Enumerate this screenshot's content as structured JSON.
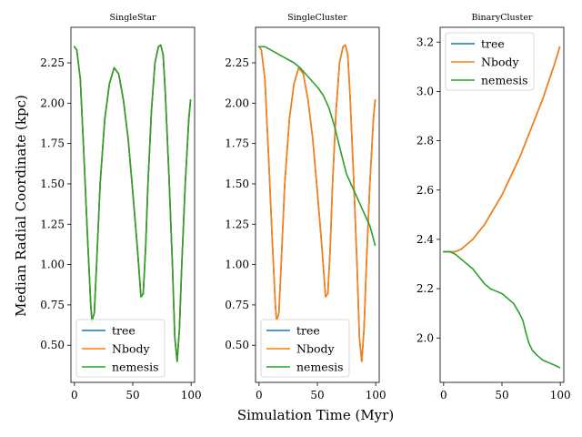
{
  "figure": {
    "xlabel": "Simulation Time (Myr)",
    "ylabel": "Median Radial Coordinate (kpc)"
  },
  "colors": {
    "tree": "#1f77b4",
    "Nbody": "#ff7f0e",
    "nemesis": "#2ca02c"
  },
  "chart_data": [
    {
      "type": "line",
      "title": "SingleStar",
      "xlim": [
        -3,
        103
      ],
      "ylim": [
        0.27,
        2.47
      ],
      "xticks": [
        0,
        50,
        100
      ],
      "yticks": [
        0.5,
        0.75,
        1.0,
        1.25,
        1.5,
        1.75,
        2.0,
        2.25
      ],
      "ytick_labels": [
        "0.50",
        "0.75",
        "1.00",
        "1.25",
        "1.50",
        "1.75",
        "2.00",
        "2.25"
      ],
      "legend": "lower-left",
      "series": [
        {
          "name": "tree",
          "x": [
            0,
            2,
            5,
            8,
            11,
            14,
            15,
            17,
            19,
            22,
            26,
            30,
            34,
            38,
            42,
            46,
            50,
            54,
            57,
            59,
            61,
            63,
            66,
            69,
            72,
            74,
            76,
            78,
            81,
            84,
            86,
            88,
            90,
            92,
            95,
            98,
            99.5
          ],
          "y": [
            2.35,
            2.33,
            2.15,
            1.7,
            1.2,
            0.75,
            0.65,
            0.7,
            1.0,
            1.5,
            1.9,
            2.12,
            2.22,
            2.18,
            2.02,
            1.78,
            1.45,
            1.1,
            0.8,
            0.82,
            1.1,
            1.5,
            1.95,
            2.25,
            2.35,
            2.36,
            2.3,
            2.05,
            1.55,
            1.0,
            0.55,
            0.4,
            0.6,
            1.0,
            1.5,
            1.9,
            2.02
          ]
        },
        {
          "name": "Nbody",
          "x": [
            0,
            2,
            5,
            8,
            11,
            14,
            15,
            17,
            19,
            22,
            26,
            30,
            34,
            38,
            42,
            46,
            50,
            54,
            57,
            59,
            61,
            63,
            66,
            69,
            72,
            74,
            76,
            78,
            81,
            84,
            86,
            88,
            90,
            92,
            95,
            98,
            99.5
          ],
          "y": [
            2.35,
            2.33,
            2.15,
            1.7,
            1.2,
            0.75,
            0.65,
            0.7,
            1.0,
            1.5,
            1.9,
            2.12,
            2.22,
            2.18,
            2.02,
            1.78,
            1.45,
            1.1,
            0.8,
            0.82,
            1.1,
            1.5,
            1.95,
            2.25,
            2.35,
            2.36,
            2.3,
            2.05,
            1.55,
            1.0,
            0.55,
            0.4,
            0.6,
            1.0,
            1.5,
            1.9,
            2.02
          ]
        },
        {
          "name": "nemesis",
          "x": [
            0,
            2,
            5,
            8,
            11,
            14,
            15,
            17,
            19,
            22,
            26,
            30,
            34,
            38,
            42,
            46,
            50,
            54,
            57,
            59,
            61,
            63,
            66,
            69,
            72,
            74,
            76,
            78,
            81,
            84,
            86,
            88,
            90,
            92,
            95,
            98,
            99.5
          ],
          "y": [
            2.35,
            2.33,
            2.15,
            1.7,
            1.2,
            0.75,
            0.65,
            0.7,
            1.0,
            1.5,
            1.9,
            2.12,
            2.22,
            2.18,
            2.02,
            1.78,
            1.45,
            1.1,
            0.8,
            0.82,
            1.1,
            1.5,
            1.95,
            2.25,
            2.35,
            2.36,
            2.3,
            2.05,
            1.55,
            1.0,
            0.55,
            0.4,
            0.6,
            1.0,
            1.5,
            1.9,
            2.02
          ]
        }
      ]
    },
    {
      "type": "line",
      "title": "SingleCluster",
      "xlim": [
        -3,
        103
      ],
      "ylim": [
        0.27,
        2.47
      ],
      "xticks": [
        0,
        50,
        100
      ],
      "yticks": [
        0.5,
        0.75,
        1.0,
        1.25,
        1.5,
        1.75,
        2.0,
        2.25
      ],
      "ytick_labels": [
        "0.50",
        "0.75",
        "1.00",
        "1.25",
        "1.50",
        "1.75",
        "2.00",
        "2.25"
      ],
      "legend": "lower-left",
      "series": [
        {
          "name": "tree",
          "x": [
            0,
            2,
            5,
            8,
            11,
            14,
            15,
            17,
            19,
            22,
            26,
            30,
            34,
            38,
            42,
            46,
            50,
            54,
            57,
            59,
            61,
            63,
            66,
            69,
            72,
            74,
            76,
            78,
            81,
            84,
            86,
            88,
            90,
            92,
            95,
            98,
            99.5
          ],
          "y": [
            2.35,
            2.33,
            2.15,
            1.7,
            1.2,
            0.75,
            0.65,
            0.7,
            1.0,
            1.5,
            1.9,
            2.12,
            2.22,
            2.18,
            2.02,
            1.78,
            1.45,
            1.1,
            0.8,
            0.82,
            1.1,
            1.5,
            1.95,
            2.25,
            2.35,
            2.36,
            2.3,
            2.05,
            1.55,
            1.0,
            0.55,
            0.4,
            0.6,
            1.0,
            1.5,
            1.9,
            2.02
          ]
        },
        {
          "name": "Nbody",
          "x": [
            0,
            2,
            5,
            8,
            11,
            14,
            15,
            17,
            19,
            22,
            26,
            30,
            34,
            38,
            42,
            46,
            50,
            54,
            57,
            59,
            61,
            63,
            66,
            69,
            72,
            74,
            76,
            78,
            81,
            84,
            86,
            88,
            90,
            92,
            95,
            98,
            99.5
          ],
          "y": [
            2.35,
            2.33,
            2.15,
            1.7,
            1.2,
            0.75,
            0.65,
            0.7,
            1.0,
            1.5,
            1.9,
            2.12,
            2.22,
            2.18,
            2.02,
            1.78,
            1.45,
            1.1,
            0.8,
            0.82,
            1.1,
            1.5,
            1.95,
            2.25,
            2.35,
            2.36,
            2.3,
            2.05,
            1.55,
            1.0,
            0.55,
            0.4,
            0.6,
            1.0,
            1.5,
            1.9,
            2.02
          ]
        },
        {
          "name": "nemesis",
          "x": [
            0,
            5,
            10,
            15,
            20,
            25,
            30,
            35,
            40,
            45,
            50,
            55,
            60,
            65,
            70,
            75,
            80,
            85,
            90,
            95,
            99.5
          ],
          "y": [
            2.35,
            2.35,
            2.33,
            2.31,
            2.29,
            2.27,
            2.25,
            2.22,
            2.18,
            2.14,
            2.1,
            2.05,
            1.97,
            1.85,
            1.7,
            1.56,
            1.48,
            1.4,
            1.32,
            1.24,
            1.12
          ]
        }
      ]
    },
    {
      "type": "line",
      "title": "BinaryCluster",
      "xlim": [
        -3,
        103
      ],
      "ylim": [
        1.82,
        3.26
      ],
      "xticks": [
        0,
        50,
        100
      ],
      "yticks": [
        2.0,
        2.2,
        2.4,
        2.6,
        2.8,
        3.0,
        3.2
      ],
      "ytick_labels": [
        "2.0",
        "2.2",
        "2.4",
        "2.6",
        "2.8",
        "3.0",
        "3.2"
      ],
      "legend": "upper-left",
      "series": [
        {
          "name": "tree",
          "x": [
            0,
            5,
            10,
            15,
            20,
            25,
            30,
            35,
            40,
            45,
            50,
            55,
            60,
            65,
            70,
            75,
            80,
            85,
            90,
            95,
            99.5
          ],
          "y": [
            2.35,
            2.35,
            2.35,
            2.36,
            2.38,
            2.4,
            2.43,
            2.46,
            2.5,
            2.54,
            2.58,
            2.63,
            2.68,
            2.73,
            2.79,
            2.85,
            2.91,
            2.97,
            3.04,
            3.11,
            3.18
          ]
        },
        {
          "name": "Nbody",
          "x": [
            0,
            5,
            10,
            15,
            20,
            25,
            30,
            35,
            40,
            45,
            50,
            55,
            60,
            65,
            70,
            75,
            80,
            85,
            90,
            95,
            99.5
          ],
          "y": [
            2.35,
            2.35,
            2.35,
            2.36,
            2.38,
            2.4,
            2.43,
            2.46,
            2.5,
            2.54,
            2.58,
            2.63,
            2.68,
            2.73,
            2.79,
            2.85,
            2.91,
            2.97,
            3.04,
            3.11,
            3.18
          ]
        },
        {
          "name": "nemesis",
          "x": [
            0,
            5,
            10,
            15,
            20,
            25,
            30,
            35,
            40,
            45,
            50,
            55,
            60,
            65,
            68,
            70,
            73,
            76,
            80,
            85,
            90,
            95,
            99.5
          ],
          "y": [
            2.35,
            2.35,
            2.34,
            2.32,
            2.3,
            2.28,
            2.25,
            2.22,
            2.2,
            2.19,
            2.18,
            2.16,
            2.14,
            2.1,
            2.07,
            2.03,
            1.98,
            1.95,
            1.93,
            1.91,
            1.9,
            1.89,
            1.88
          ]
        }
      ]
    }
  ]
}
